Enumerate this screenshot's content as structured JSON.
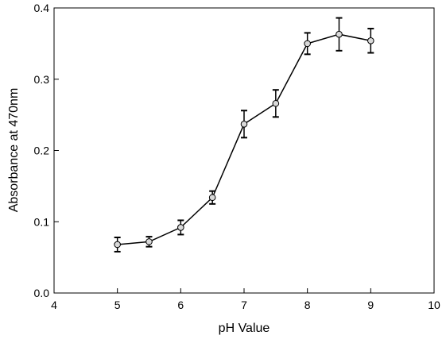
{
  "chart_data": {
    "type": "line",
    "title": "",
    "xlabel": "pH Value",
    "ylabel": "Absorbance at 470nm",
    "xlim": [
      4,
      10
    ],
    "ylim": [
      0.0,
      0.4
    ],
    "xticks": [
      4,
      5,
      6,
      7,
      8,
      9,
      10
    ],
    "yticks": [
      0.0,
      0.1,
      0.2,
      0.3,
      0.4
    ],
    "xtick_labels": [
      "4",
      "5",
      "6",
      "7",
      "8",
      "9",
      "10"
    ],
    "ytick_labels": [
      "0.0",
      "0.1",
      "0.2",
      "0.3",
      "0.4"
    ],
    "grid": false,
    "legend": "none",
    "series": [
      {
        "x": [
          5,
          5.5,
          6,
          6.5,
          7,
          7.5,
          8,
          8.5,
          9
        ],
        "y": [
          0.068,
          0.072,
          0.092,
          0.134,
          0.237,
          0.266,
          0.35,
          0.363,
          0.354
        ],
        "error": [
          0.01,
          0.007,
          0.01,
          0.009,
          0.019,
          0.019,
          0.015,
          0.023,
          0.017
        ]
      }
    ],
    "colors": {
      "line": "#000000",
      "marker_fill": "#d9d9d9",
      "marker_stroke": "#000000"
    }
  }
}
